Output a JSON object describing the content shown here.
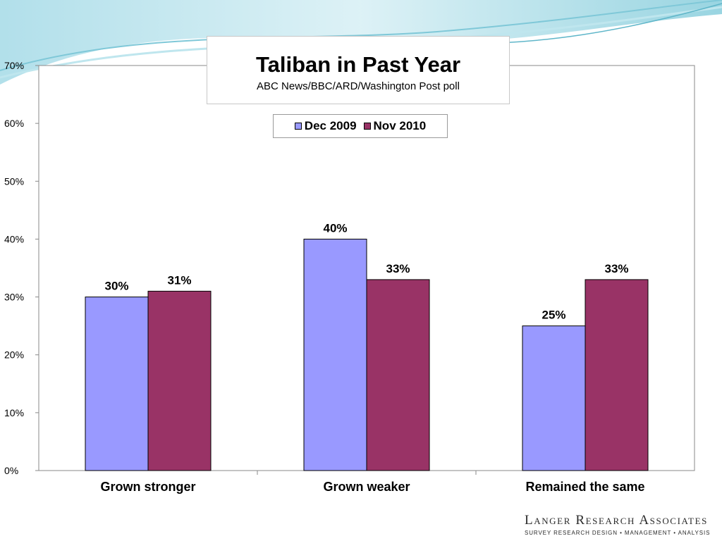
{
  "colors": {
    "dec_2009": "#9999ff",
    "nov_2010": "#993366",
    "swoosh_light": "#bfe6ee",
    "swoosh_mid": "#7fc8d8"
  },
  "chart_data": {
    "type": "bar",
    "title": "Taliban in Past Year",
    "subtitle": "ABC News/BBC/ARD/Washington Post poll",
    "categories": [
      "Grown stronger",
      "Grown weaker",
      "Remained the same"
    ],
    "series": [
      {
        "name": "Dec 2009",
        "values": [
          30,
          40,
          25
        ],
        "labels": [
          "30%",
          "40%",
          "25%"
        ]
      },
      {
        "name": "Nov 2010",
        "values": [
          31,
          33,
          33
        ],
        "labels": [
          "31%",
          "33%",
          "33%"
        ]
      }
    ],
    "ylim": [
      0,
      70
    ],
    "yticks": [
      "0%",
      "10%",
      "20%",
      "30%",
      "40%",
      "50%",
      "60%",
      "70%"
    ],
    "xlabel": "",
    "ylabel": "",
    "legend": "top-center",
    "grid": false
  },
  "logo": {
    "name": "Langer Research Associates",
    "tagline": "SURVEY RESEARCH DESIGN • MANAGEMENT • ANALYSIS"
  }
}
